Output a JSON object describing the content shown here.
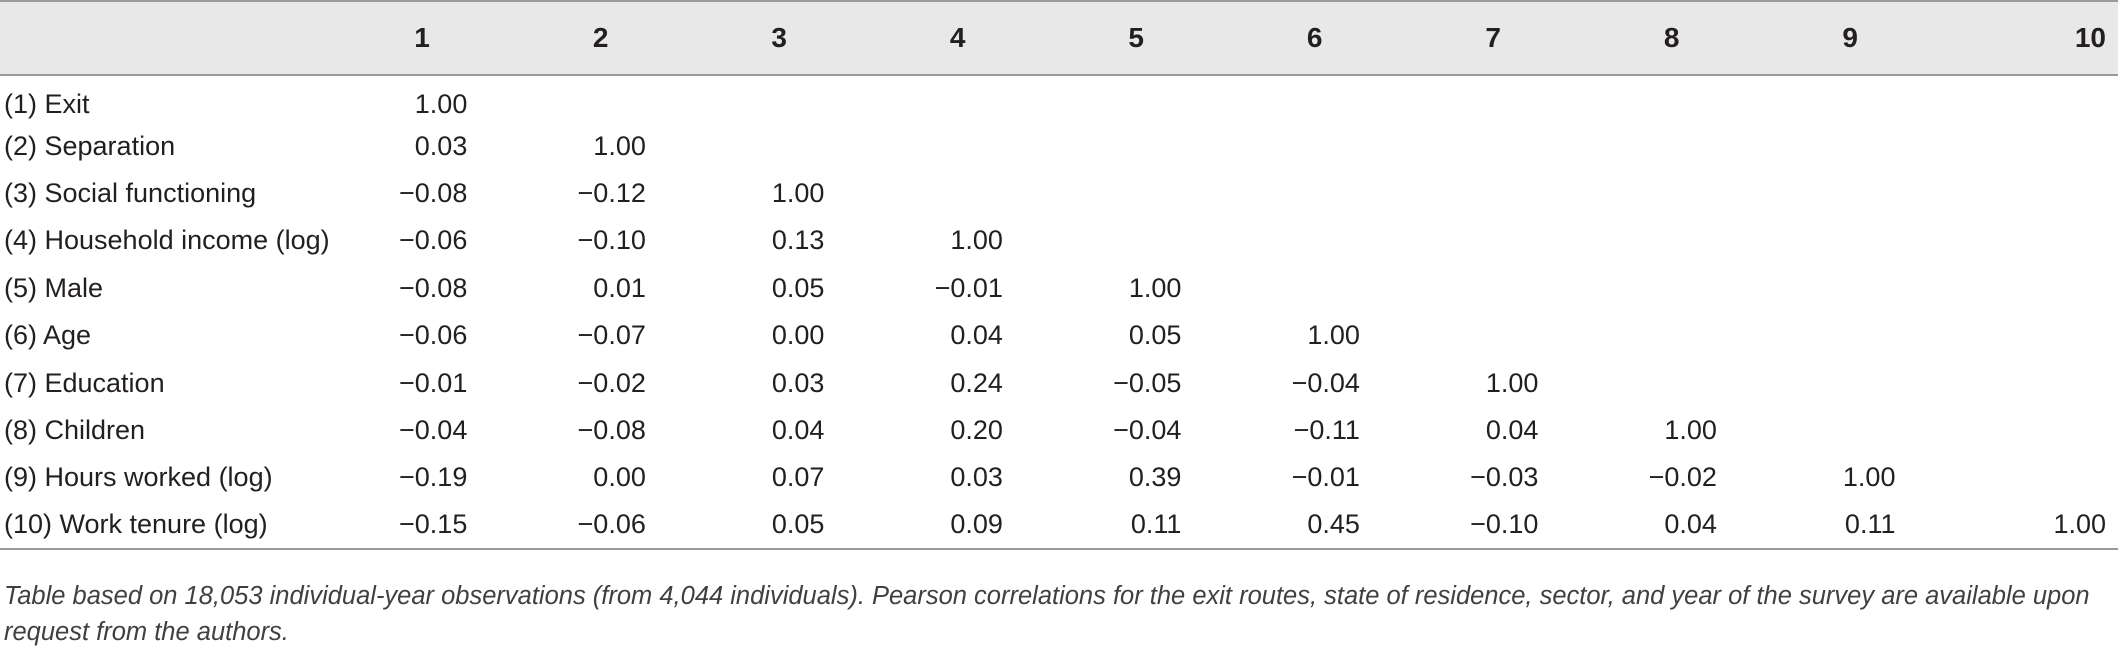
{
  "table": {
    "columns": [
      "1",
      "2",
      "3",
      "4",
      "5",
      "6",
      "7",
      "8",
      "9",
      "10"
    ],
    "rows": [
      {
        "label": "(1) Exit",
        "cells": [
          "1.00",
          "",
          "",
          "",
          "",
          "",
          "",
          "",
          "",
          ""
        ]
      },
      {
        "label": "(2) Separation",
        "cells": [
          "0.03",
          "1.00",
          "",
          "",
          "",
          "",
          "",
          "",
          "",
          ""
        ]
      },
      {
        "label": "(3) Social functioning",
        "cells": [
          "−0.08",
          "−0.12",
          "1.00",
          "",
          "",
          "",
          "",
          "",
          "",
          ""
        ]
      },
      {
        "label": "(4) Household income (log)",
        "cells": [
          "−0.06",
          "−0.10",
          "0.13",
          "1.00",
          "",
          "",
          "",
          "",
          "",
          ""
        ]
      },
      {
        "label": "(5) Male",
        "cells": [
          "−0.08",
          "0.01",
          "0.05",
          "−0.01",
          "1.00",
          "",
          "",
          "",
          "",
          ""
        ]
      },
      {
        "label": "(6) Age",
        "cells": [
          "−0.06",
          "−0.07",
          "0.00",
          "0.04",
          "0.05",
          "1.00",
          "",
          "",
          "",
          ""
        ]
      },
      {
        "label": "(7) Education",
        "cells": [
          "−0.01",
          "−0.02",
          "0.03",
          "0.24",
          "−0.05",
          "−0.04",
          "1.00",
          "",
          "",
          ""
        ]
      },
      {
        "label": "(8) Children",
        "cells": [
          "−0.04",
          "−0.08",
          "0.04",
          "0.20",
          "−0.04",
          "−0.11",
          "0.04",
          "1.00",
          "",
          ""
        ]
      },
      {
        "label": "(9) Hours worked (log)",
        "cells": [
          "−0.19",
          "0.00",
          "0.07",
          "0.03",
          "0.39",
          "−0.01",
          "−0.03",
          "−0.02",
          "1.00",
          ""
        ]
      },
      {
        "label": "(10) Work tenure (log)",
        "cells": [
          "−0.15",
          "−0.06",
          "0.05",
          "0.09",
          "0.11",
          "0.45",
          "−0.10",
          "0.04",
          "0.11",
          "1.00"
        ]
      }
    ]
  },
  "note": "Table based on 18,053 individual-year observations (from 4,044 individuals). Pearson correlations for the exit routes, state of residence, sector, and year of the survey are available upon request from the authors.",
  "colors": {
    "header_bg": "#e8e8e8",
    "rule": "#9a9a9a",
    "text": "#231f20",
    "note_text": "#404040"
  }
}
